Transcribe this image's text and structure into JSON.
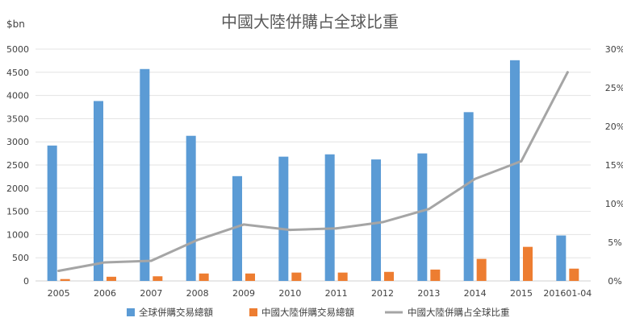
{
  "chart_data": {
    "type": "bar",
    "title": "中國大陸併購占全球比重",
    "y_unit_label": "$bn",
    "categories": [
      "2005",
      "2006",
      "2007",
      "2008",
      "2009",
      "2010",
      "2011",
      "2012",
      "2013",
      "2014",
      "2015",
      "201601-04"
    ],
    "ylim": [
      0,
      5000
    ],
    "y_ticks": [
      "0",
      "500",
      "1000",
      "1500",
      "2000",
      "2500",
      "3000",
      "3500",
      "4000",
      "4500",
      "5000"
    ],
    "y2lim": [
      0,
      30
    ],
    "y2_ticks": [
      "0%",
      "5%",
      "10%",
      "15%",
      "20%",
      "25%",
      "30%"
    ],
    "grid": true,
    "legend_position": "bottom",
    "series": [
      {
        "name": "全球併購交易總額",
        "type": "bar",
        "axis": "left",
        "color": "#5b9bd5",
        "values": [
          2920,
          3880,
          4570,
          3130,
          2260,
          2680,
          2730,
          2620,
          2750,
          3640,
          4760,
          980
        ]
      },
      {
        "name": "中國大陸併購交易總額",
        "type": "bar",
        "axis": "left",
        "color": "#ed7d31",
        "values": [
          40,
          90,
          100,
          160,
          160,
          180,
          180,
          195,
          245,
          475,
          735,
          265
        ]
      },
      {
        "name": "中國大陸併購占全球比重",
        "type": "line",
        "axis": "right",
        "color": "#a5a5a5",
        "values": [
          1.3,
          2.4,
          2.6,
          5.3,
          7.3,
          6.6,
          6.8,
          7.6,
          9.3,
          13.2,
          15.5,
          27.0
        ]
      }
    ]
  }
}
